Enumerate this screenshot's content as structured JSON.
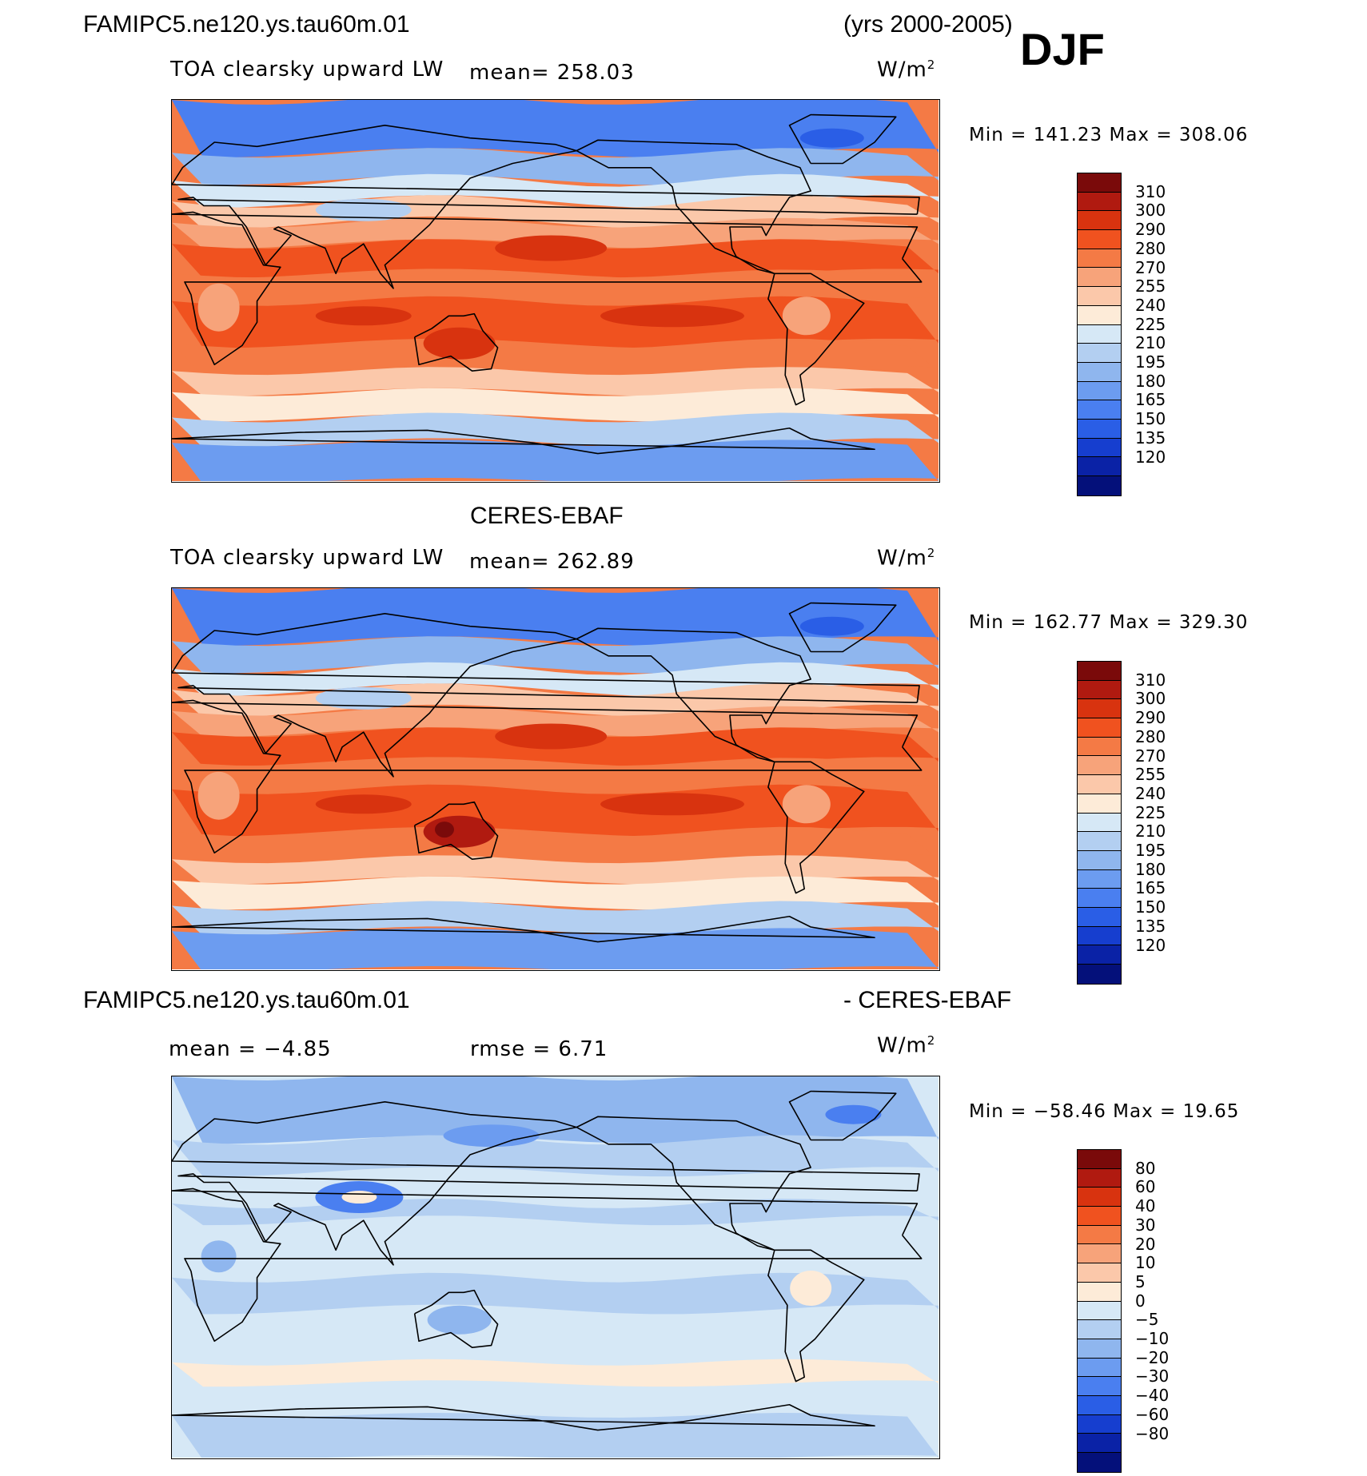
{
  "header": {
    "case_name": "FAMIPC5.ne120.ys.tau60m.01",
    "years": "(yrs 2000-2005)",
    "season": "DJF"
  },
  "panels": [
    {
      "title": "",
      "variable": "TOA clearsky upward LW",
      "mean_text": "mean=  258.03",
      "units": "W/m",
      "units_sup": "2",
      "minmax": "Min  =  141.23  Max  =  308.06",
      "style": "abs"
    },
    {
      "title": "CERES-EBAF",
      "variable": "TOA clearsky upward LW",
      "mean_text": "mean=  262.89",
      "units": "W/m",
      "units_sup": "2",
      "minmax": "Min  =  162.77  Max  =  329.30",
      "style": "obs"
    },
    {
      "title_left": "FAMIPC5.ne120.ys.tau60m.01",
      "title_right": "- CERES-EBAF",
      "mean_text": "mean  =   −4.85",
      "rmse_text": "rmse  =     6.71",
      "units": "W/m",
      "units_sup": "2",
      "minmax": "Min  =  −58.46  Max  =    19.65",
      "style": "diff"
    }
  ],
  "colorbars": {
    "abs": {
      "colors": [
        "#7a0a0a",
        "#b01a10",
        "#d8330f",
        "#f0521f",
        "#f47a45",
        "#f7a37a",
        "#fbc8aa",
        "#fdebd8",
        "#d6e8f6",
        "#b3cff1",
        "#8fb6ee",
        "#6c9cf0",
        "#4a7ff0",
        "#2a5ee6",
        "#163ecf",
        "#0a22a6",
        "#04107a"
      ],
      "ticks": [
        "310",
        "300",
        "290",
        "280",
        "270",
        "255",
        "240",
        "225",
        "210",
        "195",
        "180",
        "165",
        "150",
        "135",
        "120"
      ]
    },
    "diff": {
      "colors": [
        "#7a0a0a",
        "#b01a10",
        "#d8330f",
        "#f0521f",
        "#f47a45",
        "#f7a37a",
        "#fbc8aa",
        "#fdebd8",
        "#d6e8f6",
        "#b3cff1",
        "#8fb6ee",
        "#6c9cf0",
        "#4a7ff0",
        "#2a5ee6",
        "#163ecf",
        "#0a22a6",
        "#04107a"
      ],
      "ticks": [
        "80",
        "60",
        "40",
        "30",
        "20",
        "10",
        "5",
        "0",
        "−5",
        "−10",
        "−20",
        "−30",
        "−40",
        "−60",
        "−80"
      ]
    }
  }
}
